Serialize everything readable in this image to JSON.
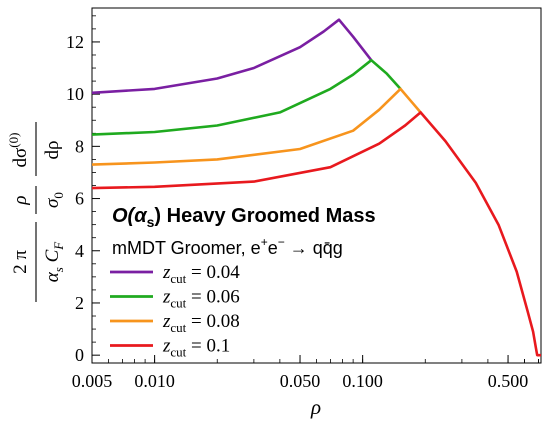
{
  "chart_data": {
    "type": "line",
    "title": "O(α_s) Heavy Groomed Mass",
    "subtitle": "mMDT Groomer, e⁺e⁻ → qq̄g",
    "xlabel": "ρ",
    "ylabel": "(2π/(α_s C_F)) (ρ/σ₀) dσ⁽⁰⁾/dρ",
    "x_scale": "log",
    "xlim": [
      0.005,
      0.72
    ],
    "ylim": [
      -0.3,
      13.3
    ],
    "x_ticks": [
      "0.005",
      "0.010",
      "0.050",
      "0.100",
      "0.500"
    ],
    "y_ticks": [
      "0",
      "2",
      "4",
      "6",
      "8",
      "10",
      "12"
    ],
    "grid": false,
    "legend_position": "lower-left",
    "series": [
      {
        "name": "z_cut = 0.04",
        "legend_label": "0.04",
        "color": "#7a1fa2",
        "x": [
          0.005,
          0.01,
          0.02,
          0.03,
          0.05,
          0.065,
          0.077,
          0.09,
          0.11
        ],
        "y": [
          10.05,
          10.2,
          10.6,
          11.0,
          11.8,
          12.4,
          12.85,
          12.2,
          11.3
        ]
      },
      {
        "name": "z_cut = 0.06",
        "legend_label": "0.06",
        "color": "#1faa1f",
        "x": [
          0.005,
          0.01,
          0.02,
          0.04,
          0.07,
          0.09,
          0.11,
          0.13,
          0.152
        ],
        "y": [
          8.45,
          8.55,
          8.8,
          9.3,
          10.2,
          10.75,
          11.3,
          10.8,
          10.2
        ]
      },
      {
        "name": "z_cut = 0.08",
        "legend_label": "0.08",
        "color": "#f7941d",
        "x": [
          0.005,
          0.01,
          0.02,
          0.05,
          0.09,
          0.12,
          0.152,
          0.17,
          0.19
        ],
        "y": [
          7.3,
          7.38,
          7.5,
          7.9,
          8.6,
          9.4,
          10.2,
          9.75,
          9.3
        ]
      },
      {
        "name": "z_cut = 0.1",
        "legend_label": "0.1",
        "color": "#e8191e",
        "x": [
          0.005,
          0.01,
          0.03,
          0.07,
          0.12,
          0.16,
          0.19,
          0.25,
          0.35,
          0.45,
          0.55,
          0.62,
          0.66,
          0.68,
          0.69,
          0.72
        ],
        "y": [
          6.4,
          6.45,
          6.65,
          7.2,
          8.1,
          8.8,
          9.3,
          8.2,
          6.6,
          5.0,
          3.2,
          1.7,
          0.9,
          0.3,
          0.0,
          0.0
        ]
      }
    ]
  },
  "annotation": {
    "title_main": "O(α",
    "title_sub": "s",
    "title_rest": ") Heavy Groomed Mass",
    "sub_text": "mMDT Groomer, e",
    "sub_sup": "+",
    "sub_text2": "e",
    "sub_sup2": "−",
    "sub_text3": " → qq̄g"
  },
  "legend_prefix": "z",
  "legend_prefix_sub": "cut",
  "legend_eq": " = ",
  "ylabel_parts": {
    "two_pi": "2 π",
    "alpha": "α",
    "alpha_sub": "s",
    "cf": "C",
    "cf_sub": "F",
    "rho": "ρ",
    "sigma0": "σ",
    "sigma0_sub": "0",
    "dsigma": "dσ",
    "dsigma_sup": "(0)",
    "drho": "dρ"
  }
}
